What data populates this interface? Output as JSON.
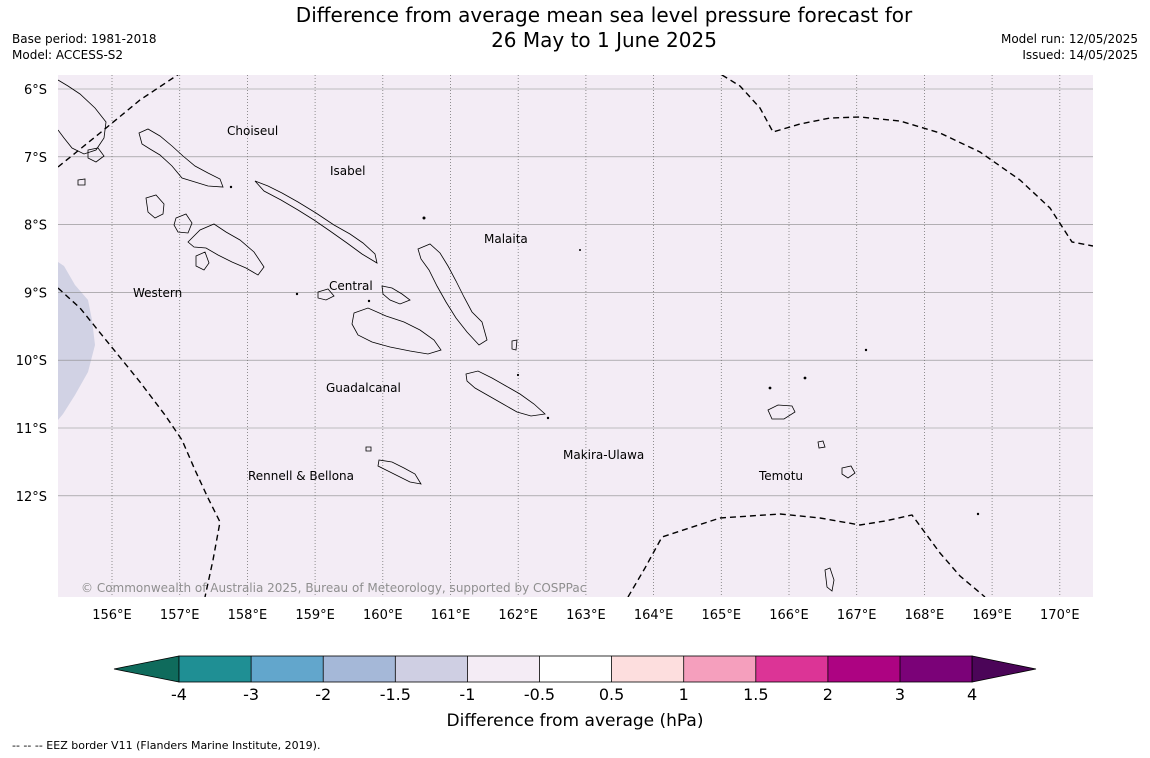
{
  "title": {
    "line1": "Difference from average mean sea level pressure forecast for",
    "line2": "26 May to 1 June 2025"
  },
  "meta": {
    "base_period": "Base period: 1981-2018",
    "model": "Model: ACCESS-S2",
    "model_run": "Model run: 12/05/2025",
    "issued": "Issued: 14/05/2025"
  },
  "map": {
    "lat_labels": [
      "6°S",
      "7°S",
      "8°S",
      "9°S",
      "10°S",
      "11°S",
      "12°S"
    ],
    "lon_labels": [
      "156°E",
      "157°E",
      "158°E",
      "159°E",
      "160°E",
      "161°E",
      "162°E",
      "163°E",
      "164°E",
      "165°E",
      "166°E",
      "167°E",
      "168°E",
      "169°E",
      "170°E"
    ],
    "regions": [
      "Choiseul",
      "Isabel",
      "Malaita",
      "Western",
      "Central",
      "Guadalcanal",
      "Makira-Ulawa",
      "Rennell & Bellona",
      "Temotu"
    ],
    "copyright": "© Commonwealth of Australia 2025, Bureau of Meteorology, supported by COSPPac",
    "background_color": "#f3ecf5",
    "anomaly_color": "#d1d2e4",
    "coastline_color": "#000000"
  },
  "colorbar": {
    "label": "Difference from average (hPa)",
    "ticks": [
      "-4",
      "-3",
      "-2",
      "-1.5",
      "-1",
      "-0.5",
      "0.5",
      "1",
      "1.5",
      "2",
      "3",
      "4"
    ],
    "low_extend_color": "#0f6b5c",
    "colors": [
      "#1f8f94",
      "#62a6cc",
      "#a5b8d8",
      "#cfcfe3",
      "#f4ecf5",
      "#ffffff",
      "#fddede",
      "#f59fbd",
      "#dc3496",
      "#ad0382",
      "#7b0278"
    ],
    "high_extend_color": "#4b0558"
  },
  "footnote": "--  --  -- EEZ border V11 (Flanders Marine Institute, 2019)."
}
